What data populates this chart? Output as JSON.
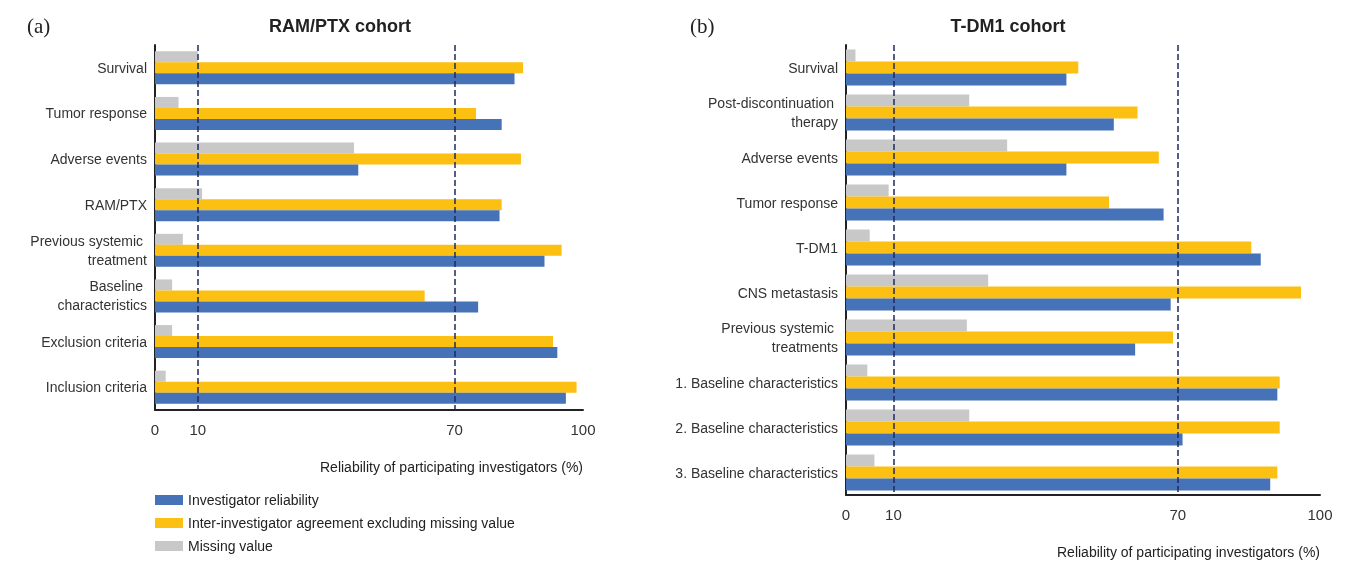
{
  "chart_data": [
    {
      "type": "bar",
      "orientation": "horizontal",
      "title": "RAM/PTX cohort",
      "xlabel": "Reliability of participating investigators (%)",
      "annotations": [
        "(a)"
      ],
      "categories": [
        "Survival",
        "Tumor response",
        "Adverse events",
        "RAM/PTX",
        "Previous systemic treatment",
        "Baseline characteristics",
        "Exclusion criteria",
        "Inclusion criteria"
      ],
      "series": [
        {
          "name": "Missing value",
          "color": "#c8c8c8",
          "values": [
            10,
            5.5,
            46.5,
            11,
            6.5,
            4,
            4,
            2.5
          ]
        },
        {
          "name": "Inter-investigator agreement excluding missing value",
          "color": "#fbc011",
          "values": [
            86,
            75,
            85.5,
            81,
            95,
            63,
            93,
            98.5
          ]
        },
        {
          "name": "Investigator reliability",
          "color": "#4672b8",
          "values": [
            84,
            81,
            47.5,
            80.5,
            91,
            75.5,
            94,
            96
          ]
        }
      ],
      "xlim": [
        0,
        100
      ],
      "xticks": [
        0,
        10,
        70,
        100
      ],
      "ref_lines": [
        {
          "axis": "x",
          "value": 10,
          "color": "#1f2a5e",
          "line_style": "dashed"
        },
        {
          "axis": "x",
          "value": 70,
          "color": "#1f2a5e",
          "line_style": "dashed"
        }
      ],
      "grid": false,
      "legend": "bottom left"
    },
    {
      "type": "bar",
      "orientation": "horizontal",
      "title": "T-DM1 cohort",
      "xlabel": "Reliability of participating investigators (%)",
      "annotations": [
        "(b)"
      ],
      "categories": [
        "Survival",
        "Post-discontinuation therapy",
        "Adverse events",
        "Tumor response",
        "T-DM1",
        "CNS metastasis",
        "Previous systemic treatments",
        "1. Baseline characteristics",
        "2. Baseline characteristics",
        "3. Baseline characteristics"
      ],
      "series": [
        {
          "color": "#c8c8c8",
          "values": [
            2,
            26,
            34,
            9,
            5,
            30,
            25.5,
            4.5,
            26,
            6
          ]
        },
        {
          "color": "#fbc011",
          "values": [
            49,
            61.5,
            66,
            55.5,
            85.5,
            96,
            69,
            91.5,
            91.5,
            91
          ]
        },
        {
          "color": "#4672b8",
          "values": [
            46.5,
            56.5,
            46.5,
            67,
            87.5,
            68.5,
            61,
            91,
            71,
            89.5
          ]
        }
      ],
      "xlim": [
        0,
        100
      ],
      "xticks": [
        0,
        10,
        70,
        100
      ],
      "ref_lines": [
        {
          "axis": "x",
          "value": 10,
          "color": "#1f2a5e",
          "line_style": "dashed"
        },
        {
          "axis": "x",
          "value": 70,
          "color": "#1f2a5e",
          "line_style": "dashed"
        }
      ],
      "grid": false
    }
  ]
}
